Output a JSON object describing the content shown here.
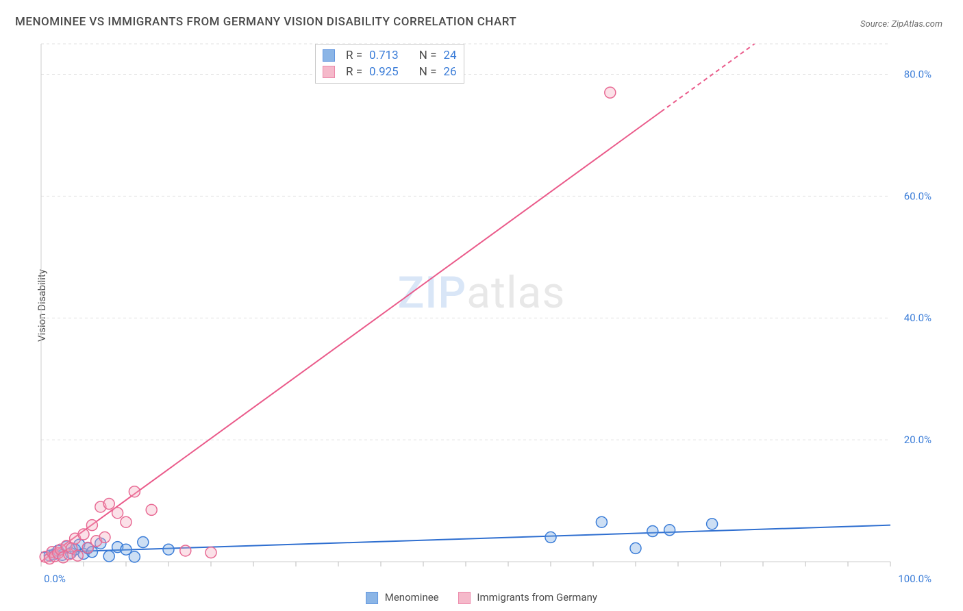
{
  "title": "MENOMINEE VS IMMIGRANTS FROM GERMANY VISION DISABILITY CORRELATION CHART",
  "source_label": "Source:",
  "source_value": "ZipAtlas.com",
  "ylabel": "Vision Disability",
  "watermark_a": "ZIP",
  "watermark_b": "atlas",
  "chart": {
    "type": "scatter",
    "background_color": "#ffffff",
    "grid_color": "#e2e2e2",
    "axis_color": "#cccccc",
    "tick_color": "#bbbbbb",
    "label_color": "#3b7dd8",
    "label_fontsize": 15,
    "xlim": [
      0,
      100
    ],
    "ylim": [
      0,
      85
    ],
    "x_ticks_major": [
      0,
      100
    ],
    "x_ticks_minor_step": 5,
    "x_tick_labels": {
      "0": "0.0%",
      "100": "100.0%"
    },
    "y_ticks": [
      20,
      40,
      60,
      80
    ],
    "y_tick_labels": {
      "20": "20.0%",
      "40": "40.0%",
      "60": "60.0%",
      "80": "80.0%"
    },
    "marker_radius": 8,
    "marker_fill_opacity": 0.35,
    "marker_stroke_width": 1.5,
    "line_width": 2
  },
  "series": [
    {
      "name": "Menominee",
      "color": "#6fa3e0",
      "stroke": "#3b7dd8",
      "line_color": "#2f6fd0",
      "r": "0.713",
      "n": "24",
      "trend": {
        "x1": 0,
        "y1": 1.5,
        "x2": 100,
        "y2": 6.0,
        "dash_from_x": null
      },
      "points": [
        [
          1,
          1.0
        ],
        [
          1.5,
          1.2
        ],
        [
          2,
          1.8
        ],
        [
          2.5,
          1.1
        ],
        [
          3,
          2.5
        ],
        [
          3.5,
          1.4
        ],
        [
          4,
          2.0
        ],
        [
          4.5,
          2.8
        ],
        [
          5,
          1.3
        ],
        [
          5.5,
          2.2
        ],
        [
          6,
          1.6
        ],
        [
          7,
          3.0
        ],
        [
          8,
          0.9
        ],
        [
          9,
          2.4
        ],
        [
          10,
          2.0
        ],
        [
          11,
          0.8
        ],
        [
          12,
          3.2
        ],
        [
          15,
          2.0
        ],
        [
          60,
          4.0
        ],
        [
          66,
          6.5
        ],
        [
          70,
          2.2
        ],
        [
          72,
          5.0
        ],
        [
          74,
          5.2
        ],
        [
          79,
          6.2
        ]
      ]
    },
    {
      "name": "Immigrants from Germany",
      "color": "#f3a8bd",
      "stroke": "#e86a94",
      "line_color": "#ea5a8a",
      "r": "0.925",
      "n": "26",
      "trend": {
        "x1": 0,
        "y1": 0,
        "x2": 84,
        "y2": 85,
        "dash_from_x": 73
      },
      "points": [
        [
          0.5,
          0.8
        ],
        [
          1,
          0.5
        ],
        [
          1.3,
          1.6
        ],
        [
          1.6,
          0.9
        ],
        [
          2,
          1.4
        ],
        [
          2.3,
          2.0
        ],
        [
          2.6,
          0.7
        ],
        [
          3,
          2.6
        ],
        [
          3.3,
          1.2
        ],
        [
          3.6,
          2.2
        ],
        [
          4,
          3.8
        ],
        [
          4.3,
          1.0
        ],
        [
          5,
          4.5
        ],
        [
          5.5,
          2.3
        ],
        [
          6,
          6.0
        ],
        [
          6.5,
          3.4
        ],
        [
          7,
          9.0
        ],
        [
          7.5,
          4.0
        ],
        [
          8,
          9.5
        ],
        [
          9,
          8.0
        ],
        [
          10,
          6.5
        ],
        [
          11,
          11.5
        ],
        [
          13,
          8.5
        ],
        [
          17,
          1.8
        ],
        [
          20,
          1.5
        ],
        [
          67,
          77.0
        ]
      ]
    }
  ],
  "legend": {
    "r_label": "R  =",
    "n_label": "N  =",
    "series1_label": "Menominee",
    "series2_label": "Immigrants from Germany"
  }
}
